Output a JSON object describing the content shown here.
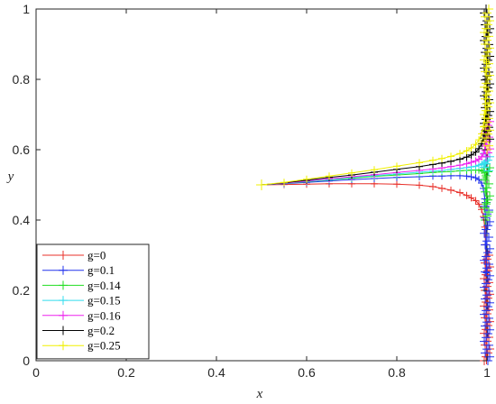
{
  "chart_data": {
    "type": "line",
    "title": "",
    "xlabel": "x",
    "ylabel": "y",
    "xlim": [
      0,
      1
    ],
    "ylim": [
      0,
      1
    ],
    "xticks": [
      "0",
      "0.2",
      "0.4",
      "0.6",
      "0.8",
      "1"
    ],
    "yticks": [
      "0",
      "0.2",
      "0.4",
      "0.6",
      "0.8",
      "1"
    ],
    "grid": false,
    "legend_position": "bottom-left",
    "marker": "+",
    "series": [
      {
        "name": "g=0",
        "color": "#e8302a",
        "x": [
          0.5,
          0.55,
          0.6,
          0.65,
          0.7,
          0.75,
          0.8,
          0.85,
          0.88,
          0.9,
          0.92,
          0.94,
          0.955,
          0.965,
          0.975,
          0.982,
          0.988,
          0.992,
          0.995,
          0.997,
          0.998,
          0.999
        ],
        "y": [
          0.5,
          0.501,
          0.502,
          0.503,
          0.503,
          0.503,
          0.502,
          0.499,
          0.495,
          0.49,
          0.485,
          0.478,
          0.47,
          0.463,
          0.455,
          0.445,
          0.43,
          0.41,
          0.38,
          0.33,
          0.2,
          0.0
        ],
        "end_y": [
          0.0,
          0.3
        ]
      },
      {
        "name": "g=0.1",
        "color": "#2233ee",
        "x": [
          0.5,
          0.55,
          0.6,
          0.65,
          0.7,
          0.75,
          0.8,
          0.85,
          0.88,
          0.9,
          0.92,
          0.94,
          0.955,
          0.965,
          0.975,
          0.982,
          0.988,
          0.992,
          0.995,
          0.997,
          0.999
        ],
        "y": [
          0.5,
          0.503,
          0.507,
          0.511,
          0.515,
          0.518,
          0.521,
          0.523,
          0.525,
          0.525,
          0.526,
          0.526,
          0.525,
          0.523,
          0.52,
          0.515,
          0.505,
          0.49,
          0.46,
          0.4,
          0.25
        ],
        "end_y": [
          0.0,
          0.45
        ]
      },
      {
        "name": "g=0.14",
        "color": "#22dd22",
        "x": [
          0.5,
          0.55,
          0.6,
          0.65,
          0.7,
          0.75,
          0.8,
          0.85,
          0.88,
          0.9,
          0.92,
          0.94,
          0.955,
          0.965,
          0.975,
          0.982,
          0.988,
          0.992,
          0.995,
          0.997,
          0.999
        ],
        "y": [
          0.5,
          0.504,
          0.509,
          0.514,
          0.519,
          0.524,
          0.528,
          0.532,
          0.535,
          0.537,
          0.538,
          0.54,
          0.541,
          0.542,
          0.542,
          0.542,
          0.541,
          0.539,
          0.535,
          0.52,
          0.45
        ],
        "end_y": [
          0.4,
          0.56
        ]
      },
      {
        "name": "g=0.15",
        "color": "#33ddee",
        "x": [
          0.5,
          0.55,
          0.6,
          0.65,
          0.7,
          0.75,
          0.8,
          0.85,
          0.88,
          0.9,
          0.92,
          0.94,
          0.955,
          0.965,
          0.975,
          0.982,
          0.988,
          0.992,
          0.995,
          0.997,
          0.999
        ],
        "y": [
          0.5,
          0.504,
          0.51,
          0.515,
          0.521,
          0.526,
          0.531,
          0.536,
          0.539,
          0.541,
          0.544,
          0.547,
          0.549,
          0.551,
          0.553,
          0.556,
          0.558,
          0.56,
          0.562,
          0.565,
          0.57
        ],
        "end_y": [
          0.54,
          0.6
        ]
      },
      {
        "name": "g=0.16",
        "color": "#ee22ee",
        "x": [
          0.5,
          0.55,
          0.6,
          0.65,
          0.7,
          0.75,
          0.8,
          0.85,
          0.88,
          0.9,
          0.92,
          0.94,
          0.955,
          0.965,
          0.975,
          0.982,
          0.988,
          0.992,
          0.995,
          0.997,
          0.999
        ],
        "y": [
          0.5,
          0.505,
          0.511,
          0.517,
          0.523,
          0.529,
          0.535,
          0.541,
          0.545,
          0.548,
          0.552,
          0.556,
          0.56,
          0.564,
          0.568,
          0.573,
          0.58,
          0.588,
          0.598,
          0.61,
          0.63
        ],
        "end_y": [
          0.58,
          0.68
        ]
      },
      {
        "name": "g=0.2",
        "color": "#000000",
        "x": [
          0.5,
          0.55,
          0.6,
          0.65,
          0.7,
          0.75,
          0.8,
          0.85,
          0.88,
          0.9,
          0.92,
          0.94,
          0.955,
          0.965,
          0.975,
          0.982,
          0.988,
          0.992,
          0.995,
          0.997,
          0.999
        ],
        "y": [
          0.5,
          0.506,
          0.513,
          0.521,
          0.528,
          0.536,
          0.544,
          0.552,
          0.558,
          0.562,
          0.567,
          0.573,
          0.579,
          0.585,
          0.593,
          0.603,
          0.617,
          0.633,
          0.655,
          0.69,
          0.8
        ],
        "end_y": [
          0.63,
          1.0
        ]
      },
      {
        "name": "g=0.25",
        "color": "#f0f000",
        "x": [
          0.5,
          0.55,
          0.6,
          0.65,
          0.7,
          0.75,
          0.8,
          0.85,
          0.88,
          0.9,
          0.92,
          0.94,
          0.955,
          0.965,
          0.975,
          0.982,
          0.988,
          0.992,
          0.995,
          0.997,
          0.999
        ],
        "y": [
          0.5,
          0.507,
          0.516,
          0.525,
          0.534,
          0.543,
          0.553,
          0.563,
          0.57,
          0.575,
          0.581,
          0.589,
          0.597,
          0.605,
          0.615,
          0.628,
          0.645,
          0.665,
          0.69,
          0.73,
          0.85
        ],
        "end_y": [
          0.6,
          1.0
        ]
      }
    ]
  }
}
